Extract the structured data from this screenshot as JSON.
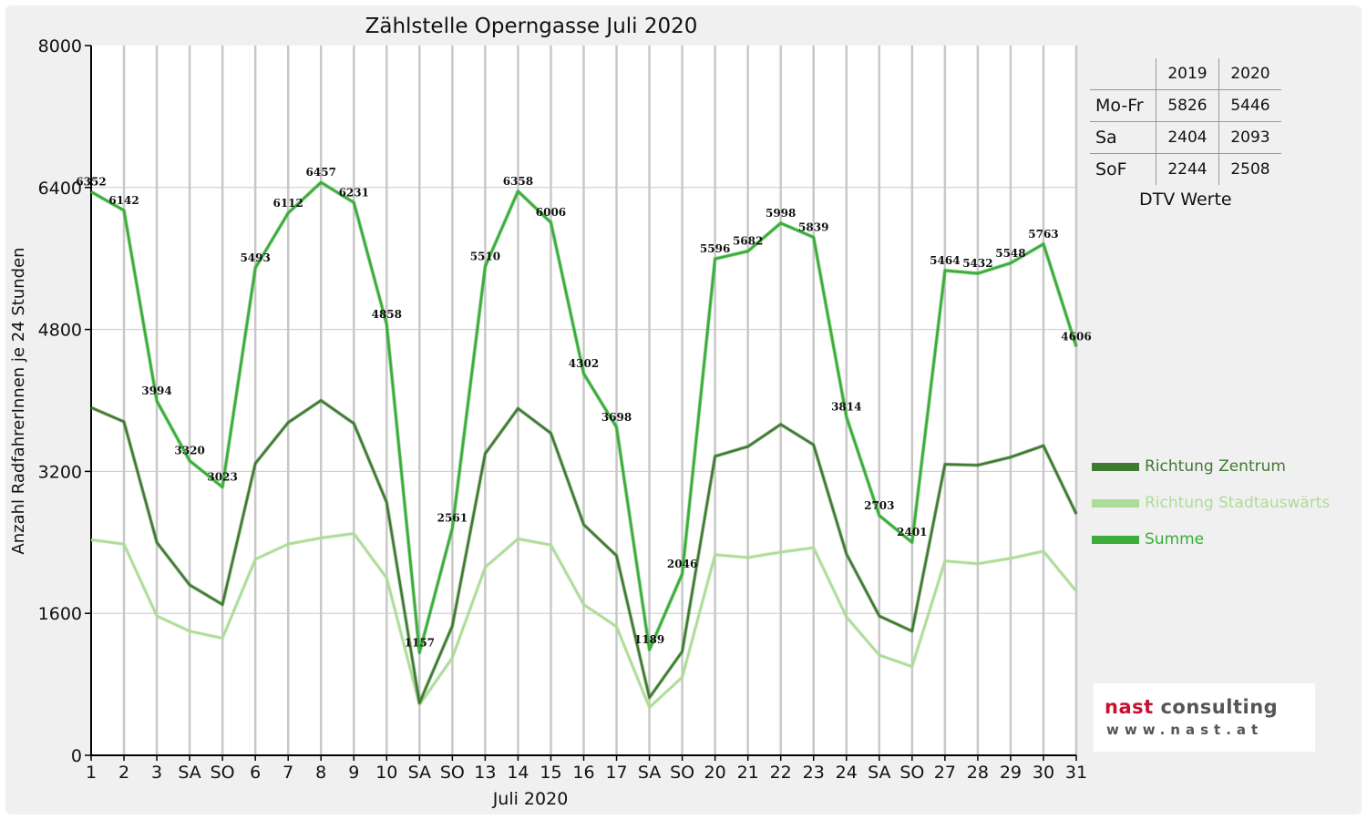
{
  "chart_data": {
    "type": "line",
    "title": "Zählstelle Operngasse Juli 2020",
    "xlabel": "Juli 2020",
    "ylabel": "Anzahl RadfahrerInnen je 24 Stunden",
    "ylim": [
      0,
      8000
    ],
    "yticks": [
      "0",
      "1600",
      "3200",
      "4800",
      "6400",
      "8000"
    ],
    "categories": [
      "1",
      "2",
      "3",
      "SA",
      "SO",
      "6",
      "7",
      "8",
      "9",
      "10",
      "SA",
      "SO",
      "13",
      "14",
      "15",
      "16",
      "17",
      "SA",
      "SO",
      "20",
      "21",
      "22",
      "23",
      "24",
      "SA",
      "SO",
      "27",
      "28",
      "29",
      "30",
      "31"
    ],
    "weekend_color": "#e00000",
    "grid": true,
    "legend_position": "right",
    "series": [
      {
        "name": "Richtung Zentrum",
        "color": "#3f7a31",
        "width": 2.4,
        "values": [
          3920,
          3760,
          2400,
          1920,
          1700,
          3290,
          3750,
          4000,
          3740,
          2850,
          590,
          1460,
          3400,
          3910,
          3630,
          2600,
          2250,
          650,
          1170,
          3370,
          3480,
          3730,
          3500,
          2270,
          1570,
          1400,
          3280,
          3270,
          3360,
          3490,
          2720
        ],
        "labels": []
      },
      {
        "name": "Richtung Stadtauswärts",
        "color": "#addc98",
        "width": 2.4,
        "values": [
          2430,
          2380,
          1570,
          1400,
          1320,
          2210,
          2380,
          2450,
          2500,
          2000,
          570,
          1100,
          2120,
          2440,
          2370,
          1700,
          1450,
          540,
          880,
          2260,
          2230,
          2290,
          2340,
          1560,
          1130,
          1000,
          2190,
          2160,
          2220,
          2300,
          1850
        ],
        "labels": []
      },
      {
        "name": "Summe",
        "color": "#3aad3a",
        "width": 2.6,
        "values": [
          6352,
          6142,
          3994,
          3320,
          3023,
          5493,
          6112,
          6457,
          6231,
          4858,
          1157,
          2561,
          5510,
          6358,
          6006,
          4302,
          3698,
          1189,
          2046,
          5596,
          5682,
          5998,
          5839,
          3814,
          2703,
          2401,
          5464,
          5432,
          5548,
          5763,
          4606
        ],
        "labels": [
          "6352",
          "6142",
          "3994",
          "3320",
          "3023",
          "5493",
          "6112",
          "6457",
          "6231",
          "4858",
          "1157",
          "2561",
          "5510",
          "6358",
          "6006",
          "4302",
          "3698",
          "1189",
          "2046",
          "5596",
          "5682",
          "5998",
          "5839",
          "3814",
          "2703",
          "2401",
          "5464",
          "5432",
          "5548",
          "5763",
          "4606"
        ]
      }
    ]
  },
  "dtv_table": {
    "headers": [
      "",
      "2019",
      "2020"
    ],
    "rows": [
      {
        "label": "Mo-Fr",
        "v2019": "5826",
        "v2020": "5446"
      },
      {
        "label": "Sa",
        "v2019": "2404",
        "v2020": "2093"
      },
      {
        "label": "SoF",
        "v2019": "2244",
        "v2020": "2508"
      }
    ],
    "caption": "DTV Werte"
  },
  "legend": [
    {
      "label": "Richtung Zentrum",
      "color": "#3f7a31"
    },
    {
      "label": "Richtung Stadtauswärts",
      "color": "#addc98"
    },
    {
      "label": "Summe",
      "color": "#3aad3a"
    }
  ],
  "logo": {
    "name_part1": "nast",
    "name_part2": " consulting",
    "url": "www.nast.at"
  }
}
